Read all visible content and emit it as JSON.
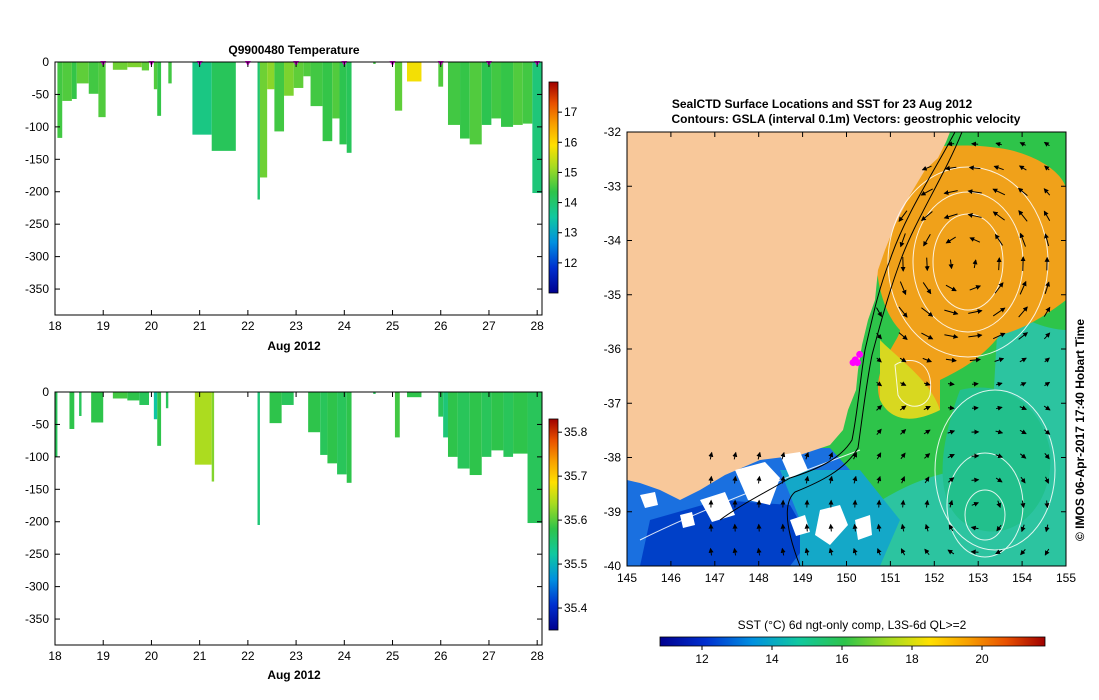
{
  "chart_data": [
    {
      "type": "heatmap",
      "panel": "temperature-profiles",
      "title": "Q9900480  Temperature",
      "xlabel": "Aug 2012",
      "ylabel": "",
      "xlim": [
        18,
        28.1
      ],
      "ylim": [
        -390,
        0
      ],
      "x_ticks": [
        18,
        19,
        20,
        21,
        22,
        23,
        24,
        25,
        26,
        27,
        28
      ],
      "y_ticks": [
        0,
        -50,
        -100,
        -150,
        -200,
        -250,
        -300,
        -350
      ],
      "colorbar": {
        "ticks": [
          12,
          13,
          14,
          15,
          16,
          17
        ],
        "range": [
          11,
          18
        ]
      },
      "profile_markers_x": [
        19.0,
        20.0,
        21.0,
        22.0,
        23.0,
        24.0,
        25.0,
        26.0,
        27.0,
        28.0
      ],
      "profiles": [
        {
          "x0": 18.05,
          "x1": 18.15,
          "depth": -117,
          "value": 14.5
        },
        {
          "x0": 18.15,
          "x1": 18.35,
          "depth": -60,
          "value": 14.6
        },
        {
          "x0": 18.35,
          "x1": 18.45,
          "depth": -57,
          "value": 14.4
        },
        {
          "x0": 18.45,
          "x1": 18.7,
          "depth": -33,
          "value": 14.7
        },
        {
          "x0": 18.7,
          "x1": 18.9,
          "depth": -49,
          "value": 14.5
        },
        {
          "x0": 18.9,
          "x1": 19.05,
          "depth": -85,
          "value": 14.6
        },
        {
          "x0": 19.2,
          "x1": 19.5,
          "depth": -12,
          "value": 14.8
        },
        {
          "x0": 19.5,
          "x1": 19.8,
          "depth": -8,
          "value": 14.9
        },
        {
          "x0": 19.8,
          "x1": 19.95,
          "depth": -13,
          "value": 14.7
        },
        {
          "x0": 20.05,
          "x1": 20.12,
          "depth": -42,
          "value": 14.6
        },
        {
          "x0": 20.12,
          "x1": 20.2,
          "depth": -83,
          "value": 14.4
        },
        {
          "x0": 20.35,
          "x1": 20.42,
          "depth": -33,
          "value": 14.5
        },
        {
          "x0": 20.85,
          "x1": 21.25,
          "depth": -112,
          "value": 13.8
        },
        {
          "x0": 21.25,
          "x1": 21.75,
          "depth": -137,
          "value": 14.2
        },
        {
          "x0": 22.2,
          "x1": 22.25,
          "depth": -212,
          "value": 14.0
        },
        {
          "x0": 22.25,
          "x1": 22.4,
          "depth": -178,
          "value": 14.8
        },
        {
          "x0": 22.4,
          "x1": 22.55,
          "depth": -42,
          "value": 15.0
        },
        {
          "x0": 22.55,
          "x1": 22.75,
          "depth": -107,
          "value": 14.5
        },
        {
          "x0": 22.75,
          "x1": 22.95,
          "depth": -52,
          "value": 14.9
        },
        {
          "x0": 22.95,
          "x1": 23.15,
          "depth": -40,
          "value": 14.7
        },
        {
          "x0": 23.15,
          "x1": 23.3,
          "depth": -22,
          "value": 14.6
        },
        {
          "x0": 23.3,
          "x1": 23.55,
          "depth": -68,
          "value": 14.5
        },
        {
          "x0": 23.55,
          "x1": 23.75,
          "depth": -122,
          "value": 14.4
        },
        {
          "x0": 23.75,
          "x1": 23.9,
          "depth": -87,
          "value": 14.6
        },
        {
          "x0": 23.9,
          "x1": 24.05,
          "depth": -127,
          "value": 14.3
        },
        {
          "x0": 24.05,
          "x1": 24.15,
          "depth": -140,
          "value": 14.2
        },
        {
          "x0": 24.6,
          "x1": 24.65,
          "depth": -3,
          "value": 14.5
        },
        {
          "x0": 25.05,
          "x1": 25.2,
          "depth": -75,
          "value": 14.7
        },
        {
          "x0": 25.3,
          "x1": 25.6,
          "depth": -30,
          "value": 15.8
        },
        {
          "x0": 25.95,
          "x1": 26.05,
          "depth": -38,
          "value": 14.6
        },
        {
          "x0": 26.15,
          "x1": 26.4,
          "depth": -97,
          "value": 14.5
        },
        {
          "x0": 26.4,
          "x1": 26.6,
          "depth": -118,
          "value": 14.4
        },
        {
          "x0": 26.6,
          "x1": 26.85,
          "depth": -127,
          "value": 14.6
        },
        {
          "x0": 26.85,
          "x1": 27.05,
          "depth": -97,
          "value": 14.3
        },
        {
          "x0": 27.05,
          "x1": 27.25,
          "depth": -87,
          "value": 14.5
        },
        {
          "x0": 27.25,
          "x1": 27.5,
          "depth": -100,
          "value": 14.4
        },
        {
          "x0": 27.5,
          "x1": 27.7,
          "depth": -97,
          "value": 14.6
        },
        {
          "x0": 27.7,
          "x1": 27.9,
          "depth": -95,
          "value": 14.5
        },
        {
          "x0": 27.9,
          "x1": 28.1,
          "depth": -202,
          "value": 13.9
        }
      ]
    },
    {
      "type": "heatmap",
      "panel": "salinity-profiles",
      "title": "",
      "xlabel": "Aug 2012",
      "ylabel": "",
      "xlim": [
        18,
        28.1
      ],
      "ylim": [
        -390,
        0
      ],
      "x_ticks": [
        18,
        19,
        20,
        21,
        22,
        23,
        24,
        25,
        26,
        27,
        28
      ],
      "y_ticks": [
        0,
        -50,
        -100,
        -150,
        -200,
        -250,
        -300,
        -350
      ],
      "colorbar": {
        "ticks": [
          35.4,
          35.5,
          35.6,
          35.7,
          35.8
        ],
        "range": [
          35.35,
          35.83
        ]
      },
      "profiles": [
        {
          "x0": 18.0,
          "x1": 18.05,
          "depth": -100,
          "value": 35.57
        },
        {
          "x0": 18.3,
          "x1": 18.4,
          "depth": -57,
          "value": 35.58
        },
        {
          "x0": 18.5,
          "x1": 18.55,
          "depth": -37,
          "value": 35.57
        },
        {
          "x0": 18.75,
          "x1": 19.0,
          "depth": -47,
          "value": 35.58
        },
        {
          "x0": 19.2,
          "x1": 19.5,
          "depth": -10,
          "value": 35.59
        },
        {
          "x0": 19.5,
          "x1": 19.75,
          "depth": -13,
          "value": 35.58
        },
        {
          "x0": 19.75,
          "x1": 19.95,
          "depth": -20,
          "value": 35.57
        },
        {
          "x0": 20.05,
          "x1": 20.12,
          "depth": -42,
          "value": 35.52
        },
        {
          "x0": 20.12,
          "x1": 20.2,
          "depth": -83,
          "value": 35.58
        },
        {
          "x0": 20.3,
          "x1": 20.35,
          "depth": -25,
          "value": 35.57
        },
        {
          "x0": 20.9,
          "x1": 21.25,
          "depth": -112,
          "value": 35.64
        },
        {
          "x0": 21.25,
          "x1": 21.3,
          "depth": -138,
          "value": 35.62
        },
        {
          "x0": 22.2,
          "x1": 22.25,
          "depth": -205,
          "value": 35.55
        },
        {
          "x0": 22.45,
          "x1": 22.7,
          "depth": -48,
          "value": 35.58
        },
        {
          "x0": 22.7,
          "x1": 22.95,
          "depth": -20,
          "value": 35.57
        },
        {
          "x0": 23.25,
          "x1": 23.5,
          "depth": -62,
          "value": 35.58
        },
        {
          "x0": 23.5,
          "x1": 23.65,
          "depth": -97,
          "value": 35.57
        },
        {
          "x0": 23.65,
          "x1": 23.85,
          "depth": -110,
          "value": 35.58
        },
        {
          "x0": 23.85,
          "x1": 24.05,
          "depth": -127,
          "value": 35.57
        },
        {
          "x0": 24.05,
          "x1": 24.15,
          "depth": -140,
          "value": 35.58
        },
        {
          "x0": 24.6,
          "x1": 24.65,
          "depth": -3,
          "value": 35.57
        },
        {
          "x0": 25.05,
          "x1": 25.15,
          "depth": -70,
          "value": 35.59
        },
        {
          "x0": 25.3,
          "x1": 25.6,
          "depth": -8,
          "value": 35.58
        },
        {
          "x0": 25.95,
          "x1": 26.05,
          "depth": -38,
          "value": 35.57
        },
        {
          "x0": 26.05,
          "x1": 26.15,
          "depth": -70,
          "value": 35.55
        },
        {
          "x0": 26.15,
          "x1": 26.35,
          "depth": -100,
          "value": 35.58
        },
        {
          "x0": 26.35,
          "x1": 26.6,
          "depth": -118,
          "value": 35.57
        },
        {
          "x0": 26.6,
          "x1": 26.85,
          "depth": -128,
          "value": 35.58
        },
        {
          "x0": 26.85,
          "x1": 27.05,
          "depth": -100,
          "value": 35.57
        },
        {
          "x0": 27.05,
          "x1": 27.3,
          "depth": -90,
          "value": 35.58
        },
        {
          "x0": 27.3,
          "x1": 27.5,
          "depth": -100,
          "value": 35.57
        },
        {
          "x0": 27.5,
          "x1": 27.8,
          "depth": -95,
          "value": 35.58
        },
        {
          "x0": 27.8,
          "x1": 28.1,
          "depth": -202,
          "value": 35.57
        }
      ]
    },
    {
      "type": "heatmap",
      "panel": "sst-map",
      "title": "SealCTD Surface Locations and SST for 23 Aug 2012",
      "subtitle": "Contours: GSLA (interval 0.1m) Vectors: geostrophic velocity",
      "xlabel": "",
      "ylabel": "",
      "xlim": [
        145,
        155
      ],
      "ylim": [
        -40,
        -32
      ],
      "x_ticks": [
        145,
        146,
        147,
        148,
        149,
        150,
        151,
        152,
        153,
        154,
        155
      ],
      "y_ticks": [
        -32,
        -33,
        -34,
        -35,
        -36,
        -37,
        -38,
        -39,
        -40
      ],
      "colorbar_label": "SST (°C) 6d ngt-only comp, L3S-6d QL>=2",
      "colorbar": {
        "ticks": [
          12,
          14,
          16,
          18,
          20
        ],
        "range": [
          10.8,
          21.8
        ]
      },
      "seal_locations": [
        [
          150.2,
          -36.2
        ],
        [
          150.25,
          -36.25
        ],
        [
          150.15,
          -36.25
        ],
        [
          150.3,
          -36.1
        ]
      ],
      "warm_eddy_center": [
        152.7,
        -34.4
      ]
    }
  ],
  "credit": "© IMOS 06-Apr-2017 17:40 Hobart Time",
  "colors": {
    "land": "#f8c89a",
    "sea_mid": "#2ec44a",
    "warm": "#f0a11a",
    "marker": "#ff00ff"
  }
}
